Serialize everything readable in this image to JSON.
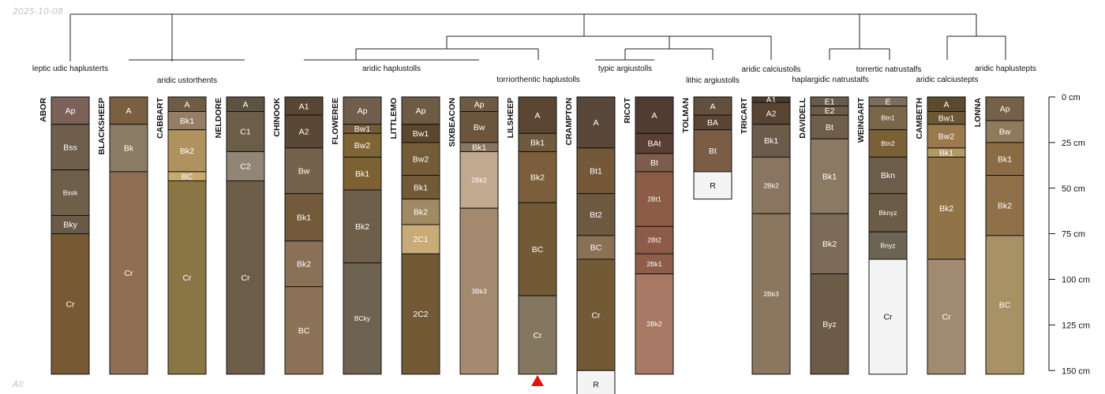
{
  "header": {
    "date": "2025-10-08"
  },
  "footer": {
    "label": "All"
  },
  "chart_data": {
    "type": "soil-profile-sketch",
    "depth_unit": "cm",
    "depth_axis": {
      "max": 150,
      "tick_labels": [
        "0 cm",
        "25 cm",
        "50 cm",
        "75 cm",
        "100 cm",
        "125 cm",
        "150 cm"
      ]
    },
    "marker": {
      "profile": "LILSHEEP",
      "symbol": "triangle",
      "color": "#e8100f"
    },
    "taxa": [
      "leptic udic haplusterts",
      "aridic ustorthents",
      "aridic haplustolls",
      "torriorthentic haplustolls",
      "typic argiustolls",
      "lithic argiustolls",
      "aridic calciustolls",
      "haplargidic natrustalfs",
      "torrertic natrustalfs",
      "aridic calciustepts",
      "aridic haplustepts"
    ],
    "profiles": [
      {
        "name": "ABOR",
        "horizons": [
          {
            "name": "Ap",
            "top": 0,
            "bottom": 15,
            "color": "#7c6158"
          },
          {
            "name": "Bss",
            "top": 15,
            "bottom": 40,
            "color": "#6e5e4b"
          },
          {
            "name": "Bssk",
            "top": 40,
            "bottom": 65,
            "color": "#6e5f4b"
          },
          {
            "name": "Bky",
            "top": 65,
            "bottom": 75,
            "color": "#6b5a48"
          },
          {
            "name": "Cr",
            "top": 75,
            "bottom": 152,
            "color": "#775a33"
          }
        ]
      },
      {
        "name": "BLACKSHEEP",
        "horizons": [
          {
            "name": "A",
            "top": 0,
            "bottom": 15,
            "color": "#7a6040"
          },
          {
            "name": "Bk",
            "top": 15,
            "bottom": 41,
            "color": "#8b7c65"
          },
          {
            "name": "Cr",
            "top": 41,
            "bottom": 152,
            "color": "#8f6e54"
          }
        ]
      },
      {
        "name": "CABBART",
        "horizons": [
          {
            "name": "A",
            "top": 0,
            "bottom": 8,
            "color": "#6e5c45"
          },
          {
            "name": "Bk1",
            "top": 8,
            "bottom": 18,
            "color": "#957e63"
          },
          {
            "name": "Bk2",
            "top": 18,
            "bottom": 41,
            "color": "#b0925e"
          },
          {
            "name": "BC",
            "top": 41,
            "bottom": 46,
            "color": "#c8aa6e"
          },
          {
            "name": "Cr",
            "top": 46,
            "bottom": 152,
            "color": "#8a7545"
          }
        ]
      },
      {
        "name": "NELDORE",
        "horizons": [
          {
            "name": "A",
            "top": 0,
            "bottom": 8,
            "color": "#5e5240"
          },
          {
            "name": "C1",
            "top": 8,
            "bottom": 30,
            "color": "#6b5d48"
          },
          {
            "name": "C2",
            "top": 30,
            "bottom": 46,
            "color": "#918676"
          },
          {
            "name": "Cr",
            "top": 46,
            "bottom": 152,
            "color": "#6b5d48"
          }
        ]
      },
      {
        "name": "CHINOOK",
        "horizons": [
          {
            "name": "A1",
            "top": 0,
            "bottom": 10,
            "color": "#584533"
          },
          {
            "name": "A2",
            "top": 10,
            "bottom": 28,
            "color": "#5a4836"
          },
          {
            "name": "Bw",
            "top": 28,
            "bottom": 53,
            "color": "#75624c"
          },
          {
            "name": "Bk1",
            "top": 53,
            "bottom": 79,
            "color": "#725a3a"
          },
          {
            "name": "Bk2",
            "top": 79,
            "bottom": 104,
            "color": "#8b7058"
          },
          {
            "name": "BC",
            "top": 104,
            "bottom": 152,
            "color": "#8c7358"
          }
        ]
      },
      {
        "name": "FLOWEREE",
        "horizons": [
          {
            "name": "Ap",
            "top": 0,
            "bottom": 15,
            "color": "#6e5e4b"
          },
          {
            "name": "Bw1",
            "top": 15,
            "bottom": 20,
            "color": "#735b36"
          },
          {
            "name": "Bw2",
            "top": 20,
            "bottom": 33,
            "color": "#7f6536"
          },
          {
            "name": "Bk1",
            "top": 33,
            "bottom": 51,
            "color": "#7c6233"
          },
          {
            "name": "Bk2",
            "top": 51,
            "bottom": 91,
            "color": "#6e5f4b"
          },
          {
            "name": "BCky",
            "top": 91,
            "bottom": 152,
            "color": "#6e6350"
          }
        ]
      },
      {
        "name": "LITTLEMO",
        "horizons": [
          {
            "name": "Ap",
            "top": 0,
            "bottom": 15,
            "color": "#6e5b44"
          },
          {
            "name": "Bw1",
            "top": 15,
            "bottom": 25,
            "color": "#5c462e"
          },
          {
            "name": "Bw2",
            "top": 25,
            "bottom": 43,
            "color": "#735c36"
          },
          {
            "name": "Bk1",
            "top": 43,
            "bottom": 56,
            "color": "#725a36"
          },
          {
            "name": "Bk2",
            "top": 56,
            "bottom": 70,
            "color": "#a08a64"
          },
          {
            "name": "2C1",
            "top": 70,
            "bottom": 86,
            "color": "#c9ab78"
          },
          {
            "name": "2C2",
            "top": 86,
            "bottom": 152,
            "color": "#725a36"
          }
        ]
      },
      {
        "name": "SIXBEACON",
        "horizons": [
          {
            "name": "Ap",
            "top": 0,
            "bottom": 8,
            "color": "#6e5a44"
          },
          {
            "name": "Bw",
            "top": 8,
            "bottom": 25,
            "color": "#6b553c"
          },
          {
            "name": "Bk1",
            "top": 25,
            "bottom": 30,
            "color": "#88775e"
          },
          {
            "name": "2Bk2",
            "top": 30,
            "bottom": 61,
            "color": "#c0a98f"
          },
          {
            "name": "3Bk3",
            "top": 61,
            "bottom": 152,
            "color": "#a38a6f"
          }
        ]
      },
      {
        "name": "LILSHEEP",
        "horizons": [
          {
            "name": "A",
            "top": 0,
            "bottom": 20,
            "color": "#5a4632"
          },
          {
            "name": "Bk1",
            "top": 20,
            "bottom": 30,
            "color": "#6e5a3e"
          },
          {
            "name": "Bk2",
            "top": 30,
            "bottom": 58,
            "color": "#7c5e3d"
          },
          {
            "name": "BC",
            "top": 58,
            "bottom": 109,
            "color": "#735a36"
          },
          {
            "name": "Cr",
            "top": 109,
            "bottom": 152,
            "color": "#83775f"
          }
        ]
      },
      {
        "name": "CRAMPTON",
        "horizons": [
          {
            "name": "A",
            "top": 0,
            "bottom": 28,
            "color": "#59473a"
          },
          {
            "name": "Bt1",
            "top": 28,
            "bottom": 53,
            "color": "#745838"
          },
          {
            "name": "Bt2",
            "top": 53,
            "bottom": 76,
            "color": "#6e5840"
          },
          {
            "name": "BC",
            "top": 76,
            "bottom": 89,
            "color": "#8a7054"
          },
          {
            "name": "Cr",
            "top": 89,
            "bottom": 150,
            "color": "#735a36"
          },
          {
            "name": "R",
            "top": 150,
            "bottom": 165,
            "color": "#f4f4f4"
          }
        ]
      },
      {
        "name": "RICOT",
        "horizons": [
          {
            "name": "A",
            "top": 0,
            "bottom": 20,
            "color": "#513c31"
          },
          {
            "name": "BAt",
            "top": 20,
            "bottom": 31,
            "color": "#5a3f34"
          },
          {
            "name": "Bt",
            "top": 31,
            "bottom": 41,
            "color": "#7c5c4c"
          },
          {
            "name": "2Bt1",
            "top": 41,
            "bottom": 71,
            "color": "#8c5c46"
          },
          {
            "name": "2Bt2",
            "top": 71,
            "bottom": 86,
            "color": "#8d5c48"
          },
          {
            "name": "2Bk1",
            "top": 86,
            "bottom": 97,
            "color": "#8f5e4a"
          },
          {
            "name": "2Bk2",
            "top": 97,
            "bottom": 152,
            "color": "#a87965"
          }
        ]
      },
      {
        "name": "TOLMAN",
        "horizons": [
          {
            "name": "A",
            "top": 0,
            "bottom": 10,
            "color": "#624f3e"
          },
          {
            "name": "BA",
            "top": 10,
            "bottom": 18,
            "color": "#5a4534"
          },
          {
            "name": "Bt",
            "top": 18,
            "bottom": 41,
            "color": "#7b5d45"
          },
          {
            "name": "R",
            "top": 41,
            "bottom": 56,
            "color": "#f4f4f4"
          }
        ]
      },
      {
        "name": "TRICART",
        "horizons": [
          {
            "name": "A1",
            "top": 0,
            "bottom": 3,
            "color": "#4c3a2a"
          },
          {
            "name": "A2",
            "top": 3,
            "bottom": 15,
            "color": "#594331"
          },
          {
            "name": "Bk1",
            "top": 15,
            "bottom": 33,
            "color": "#6b5b4a"
          },
          {
            "name": "2Bk2",
            "top": 33,
            "bottom": 64,
            "color": "#8a7660"
          },
          {
            "name": "2Bk3",
            "top": 64,
            "bottom": 152,
            "color": "#8b7760"
          }
        ]
      },
      {
        "name": "DAVIDELL",
        "horizons": [
          {
            "name": "E1",
            "top": 0,
            "bottom": 5,
            "color": "#6b5a48"
          },
          {
            "name": "E2",
            "top": 5,
            "bottom": 10,
            "color": "#6b5b47"
          },
          {
            "name": "Bt",
            "top": 10,
            "bottom": 23,
            "color": "#6f5f4a"
          },
          {
            "name": "Bk1",
            "top": 23,
            "bottom": 64,
            "color": "#8b7a63"
          },
          {
            "name": "Bk2",
            "top": 64,
            "bottom": 97,
            "color": "#7b6b57"
          },
          {
            "name": "Byz",
            "top": 97,
            "bottom": 152,
            "color": "#6b5b47"
          }
        ]
      },
      {
        "name": "WEINGART",
        "horizons": [
          {
            "name": "E",
            "top": 0,
            "bottom": 5,
            "color": "#7e6d5a"
          },
          {
            "name": "Btn1",
            "top": 5,
            "bottom": 18,
            "color": "#7a6648"
          },
          {
            "name": "Btn2",
            "top": 18,
            "bottom": 33,
            "color": "#7b5f37"
          },
          {
            "name": "Bkn",
            "top": 33,
            "bottom": 53,
            "color": "#6e5c4a"
          },
          {
            "name": "Bknyz",
            "top": 53,
            "bottom": 74,
            "color": "#6b5b47"
          },
          {
            "name": "Bnyz",
            "top": 74,
            "bottom": 89,
            "color": "#6e6454"
          },
          {
            "name": "Cr",
            "top": 89,
            "bottom": 152,
            "color": "#f4f4f4"
          }
        ]
      },
      {
        "name": "CAMBETH",
        "horizons": [
          {
            "name": "A",
            "top": 0,
            "bottom": 8,
            "color": "#5c4a2e"
          },
          {
            "name": "Bw1",
            "top": 8,
            "bottom": 15,
            "color": "#6c5832"
          },
          {
            "name": "Bw2",
            "top": 15,
            "bottom": 28,
            "color": "#9a7a4c"
          },
          {
            "name": "Bk1",
            "top": 28,
            "bottom": 33,
            "color": "#b39a64"
          },
          {
            "name": "Bk2",
            "top": 33,
            "bottom": 89,
            "color": "#907448"
          },
          {
            "name": "Cr",
            "top": 89,
            "bottom": 152,
            "color": "#a08a72"
          }
        ]
      },
      {
        "name": "LONNA",
        "horizons": [
          {
            "name": "Ap",
            "top": 0,
            "bottom": 13,
            "color": "#756048"
          },
          {
            "name": "Bw",
            "top": 13,
            "bottom": 25,
            "color": "#907a5c"
          },
          {
            "name": "Bk1",
            "top": 25,
            "bottom": 43,
            "color": "#8a6c44"
          },
          {
            "name": "Bk2",
            "top": 43,
            "bottom": 76,
            "color": "#8f7048"
          },
          {
            "name": "BC",
            "top": 76,
            "bottom": 152,
            "color": "#a89164"
          }
        ]
      }
    ]
  }
}
